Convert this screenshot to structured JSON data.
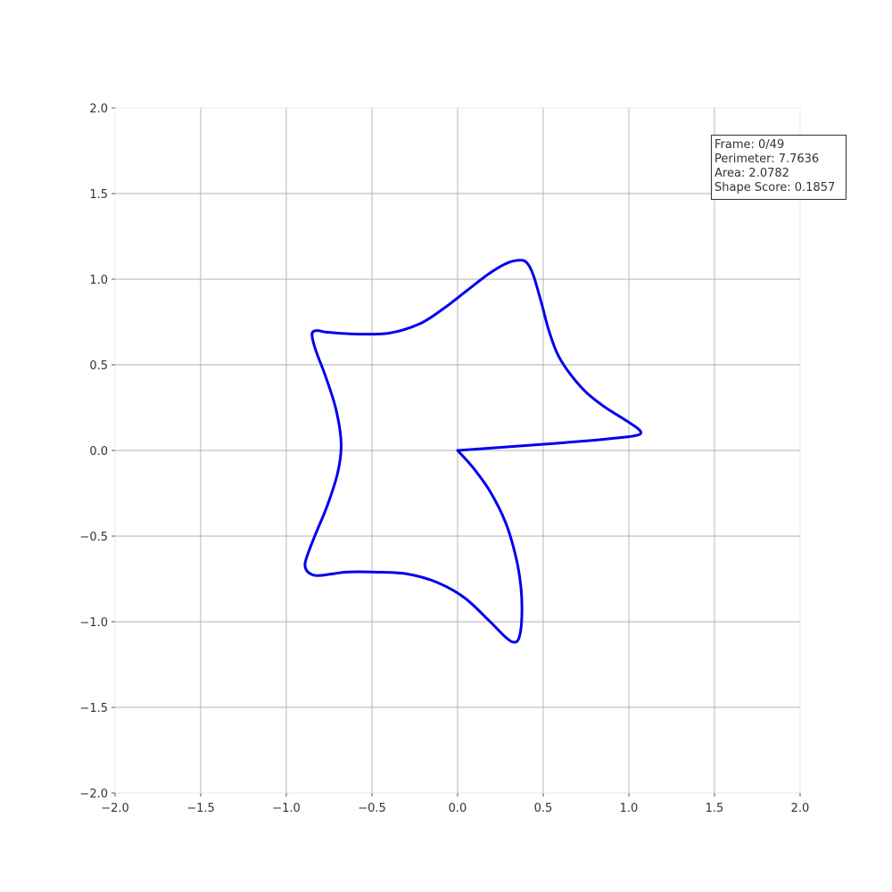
{
  "chart_data": {
    "type": "line",
    "title": "",
    "xlabel": "",
    "ylabel": "",
    "xlim": [
      -2.0,
      2.0
    ],
    "ylim": [
      -2.0,
      2.0
    ],
    "grid": true,
    "xticks": [
      "−2.0",
      "−1.5",
      "−1.0",
      "−0.5",
      "0.0",
      "0.5",
      "1.0",
      "1.5",
      "2.0"
    ],
    "yticks": [
      "−2.0",
      "−1.5",
      "−1.0",
      "−0.5",
      "0.0",
      "0.5",
      "1.0",
      "1.5",
      "2.0"
    ],
    "series": [
      {
        "color": "#0000ee",
        "points": [
          [
            0.0,
            0.0
          ],
          [
            0.28,
            0.02
          ],
          [
            0.55,
            0.04
          ],
          [
            0.8,
            0.06
          ],
          [
            0.95,
            0.075
          ],
          [
            1.03,
            0.085
          ],
          [
            1.07,
            0.1
          ],
          [
            1.05,
            0.13
          ],
          [
            0.96,
            0.19
          ],
          [
            0.85,
            0.26
          ],
          [
            0.74,
            0.35
          ],
          [
            0.64,
            0.47
          ],
          [
            0.58,
            0.57
          ],
          [
            0.53,
            0.71
          ],
          [
            0.49,
            0.86
          ],
          [
            0.44,
            1.03
          ],
          [
            0.4,
            1.1
          ],
          [
            0.35,
            1.11
          ],
          [
            0.28,
            1.09
          ],
          [
            0.18,
            1.03
          ],
          [
            0.05,
            0.93
          ],
          [
            -0.08,
            0.83
          ],
          [
            -0.22,
            0.74
          ],
          [
            -0.4,
            0.685
          ],
          [
            -0.6,
            0.68
          ],
          [
            -0.76,
            0.69
          ],
          [
            -0.82,
            0.7
          ],
          [
            -0.85,
            0.68
          ],
          [
            -0.83,
            0.59
          ],
          [
            -0.77,
            0.43
          ],
          [
            -0.71,
            0.24
          ],
          [
            -0.68,
            0.04
          ],
          [
            -0.7,
            -0.13
          ],
          [
            -0.76,
            -0.32
          ],
          [
            -0.83,
            -0.49
          ],
          [
            -0.88,
            -0.62
          ],
          [
            -0.89,
            -0.68
          ],
          [
            -0.86,
            -0.72
          ],
          [
            -0.8,
            -0.73
          ],
          [
            -0.65,
            -0.71
          ],
          [
            -0.48,
            -0.71
          ],
          [
            -0.3,
            -0.72
          ],
          [
            -0.12,
            -0.77
          ],
          [
            0.04,
            -0.86
          ],
          [
            0.18,
            -0.99
          ],
          [
            0.28,
            -1.09
          ],
          [
            0.33,
            -1.12
          ],
          [
            0.36,
            -1.09
          ],
          [
            0.375,
            -0.97
          ],
          [
            0.37,
            -0.8
          ],
          [
            0.34,
            -0.62
          ],
          [
            0.28,
            -0.42
          ],
          [
            0.19,
            -0.24
          ],
          [
            0.09,
            -0.1
          ],
          [
            0.0,
            0.0
          ]
        ]
      }
    ]
  },
  "info": {
    "frame": "Frame: 0/49",
    "perimeter": "Perimeter: 7.7636",
    "area": "Area: 2.0782",
    "score": "Shape Score: 0.1857"
  }
}
